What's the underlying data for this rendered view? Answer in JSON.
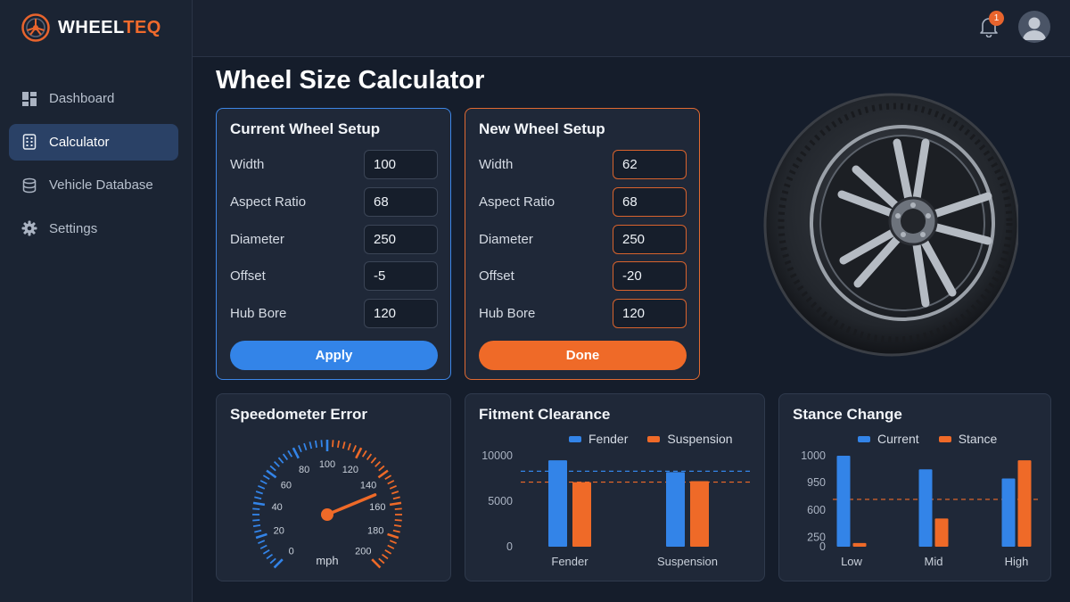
{
  "brand": {
    "name_a": "WHEEL",
    "name_b": "TEQ"
  },
  "nav": {
    "items": [
      {
        "label": "Dashboard",
        "icon": "dashboard-icon"
      },
      {
        "label": "Calculator",
        "icon": "calculator-icon",
        "active": true
      },
      {
        "label": "Vehicle Database",
        "icon": "database-icon"
      },
      {
        "label": "Settings",
        "icon": "gear-icon"
      }
    ]
  },
  "header": {
    "notification_count": "1"
  },
  "page": {
    "title": "Wheel Size Calculator"
  },
  "current_setup": {
    "title": "Current Wheel Setup",
    "fields": [
      {
        "label": "Width",
        "value": "100"
      },
      {
        "label": "Aspect Ratio",
        "value": "68"
      },
      {
        "label": "Diameter",
        "value": "250"
      },
      {
        "label": "Offset",
        "value": "-5"
      },
      {
        "label": "Hub Bore",
        "value": "120"
      }
    ],
    "button": "Apply"
  },
  "new_setup": {
    "title": "New Wheel Setup",
    "fields": [
      {
        "label": "Width",
        "value": "62"
      },
      {
        "label": "Aspect Ratio",
        "value": "68"
      },
      {
        "label": "Diameter",
        "value": "250"
      },
      {
        "label": "Offset",
        "value": "-20"
      },
      {
        "label": "Hub Bore",
        "value": "120"
      }
    ],
    "button": "Done"
  },
  "colors": {
    "blue": "#3384e8",
    "orange": "#ef6a28",
    "background": "#151d2b",
    "panel": "#1f2838"
  },
  "chart_data": [
    {
      "type": "gauge",
      "title": "Speedometer Error",
      "unit": "mph",
      "tick_labels": [
        "0",
        "20",
        "40",
        "60",
        "80",
        "100",
        "120",
        "140",
        "160",
        "180",
        "200"
      ],
      "min": 0,
      "max": 200,
      "value": 150
    },
    {
      "type": "bar",
      "title": "Fitment Clearance",
      "categories": [
        "Fender",
        "Suspension"
      ],
      "series": [
        {
          "name": "Fender",
          "color": "#3384e8",
          "values": [
            9500,
            8200
          ]
        },
        {
          "name": "Suspension",
          "color": "#ef6a28",
          "values": [
            7100,
            7200
          ]
        }
      ],
      "y_ticks": [
        "0",
        "5000",
        "10000"
      ],
      "ylim": [
        0,
        10000
      ],
      "reference_lines": [
        {
          "value": 8300,
          "color": "#3384e8"
        },
        {
          "value": 7100,
          "color": "#ef6a28"
        }
      ],
      "grid": false,
      "legend": "top"
    },
    {
      "type": "bar",
      "title": "Stance Change",
      "categories": [
        "Low",
        "Mid",
        "High"
      ],
      "series": [
        {
          "name": "Current",
          "color": "#3384e8",
          "values": [
            1000,
            850,
            750
          ]
        },
        {
          "name": "Stance",
          "color": "#ef6a28",
          "values": [
            40,
            310,
            950
          ]
        }
      ],
      "y_ticks": [
        "0",
        "250",
        "600",
        "950",
        " 1000"
      ],
      "ylim": [
        0,
        1000
      ],
      "reference_lines": [
        {
          "value": 520,
          "color": "#ef6a28"
        }
      ],
      "grid": false,
      "legend": "top"
    }
  ]
}
